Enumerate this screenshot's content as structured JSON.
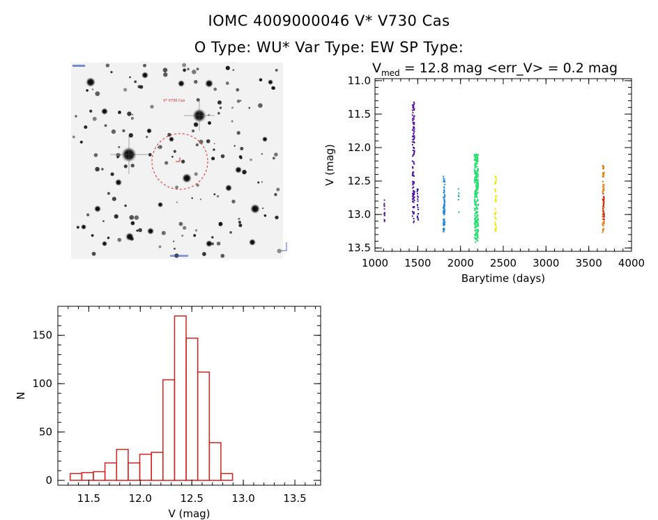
{
  "header": {
    "title_line1": "IOMC 4009000046    V* V730 Cas",
    "title_line2": "O Type: WU*  Var Type: EW  SP Type:"
  },
  "finder": {
    "target_label": "V* V730 Cas"
  },
  "chart_data": [
    {
      "type": "scatter",
      "title_prefix": "V",
      "title_sub": "med",
      "title_rest": " = 12.8 mag <err_V> = 0.2 mag",
      "xlabel": "Barytime (days)",
      "ylabel": "V (mag)",
      "xlim": [
        1000,
        4000
      ],
      "ylim": [
        13.55,
        10.97
      ],
      "y_reversed": true,
      "xticks": [
        1000,
        1500,
        2000,
        2500,
        3000,
        3500,
        4000
      ],
      "yticks": [
        11.0,
        11.5,
        12.0,
        12.5,
        13.0,
        13.5
      ],
      "clusters": [
        {
          "x_center": 1110,
          "x_spread": 4,
          "y_min": 12.72,
          "y_max": 13.12,
          "n": 14,
          "color": "#5a1a8c"
        },
        {
          "x_center": 1450,
          "x_spread": 12,
          "y_min": 11.32,
          "y_max": 13.18,
          "n": 120,
          "color": "#4b0fa8"
        },
        {
          "x_center": 1500,
          "x_spread": 6,
          "y_min": 12.6,
          "y_max": 13.1,
          "n": 20,
          "color": "#3a1aa0"
        },
        {
          "x_center": 1808,
          "x_spread": 10,
          "y_min": 12.43,
          "y_max": 13.28,
          "n": 70,
          "color": "#1e88d8"
        },
        {
          "x_center": 1980,
          "x_spread": 4,
          "y_min": 12.56,
          "y_max": 12.98,
          "n": 6,
          "color": "#14b8a0"
        },
        {
          "x_center": 2185,
          "x_spread": 22,
          "y_min": 12.1,
          "y_max": 13.42,
          "n": 240,
          "color": "#1ee06a"
        },
        {
          "x_center": 2410,
          "x_spread": 8,
          "y_min": 12.42,
          "y_max": 13.25,
          "n": 45,
          "color": "#f0e810"
        },
        {
          "x_center": 3670,
          "x_spread": 10,
          "y_min": 12.27,
          "y_max": 13.28,
          "n": 70,
          "color": "#e08010"
        },
        {
          "x_center": 3675,
          "x_spread": 6,
          "y_min": 12.65,
          "y_max": 13.1,
          "n": 25,
          "color": "#c81e1e"
        }
      ]
    },
    {
      "type": "bar",
      "subtype": "histogram",
      "xlabel": "V (mag)",
      "ylabel": "N",
      "xlim": [
        11.2,
        13.75
      ],
      "ylim": [
        -5,
        180
      ],
      "xticks": [
        11.5,
        12.0,
        12.5,
        13.0,
        13.5
      ],
      "yticks": [
        0,
        50,
        100,
        150
      ],
      "bin_width": 0.1125,
      "bin_start": 11.32,
      "values": [
        7,
        8,
        9,
        18,
        32,
        18,
        27,
        29,
        104,
        170,
        147,
        112,
        39,
        7
      ],
      "color": "#d42020"
    }
  ]
}
